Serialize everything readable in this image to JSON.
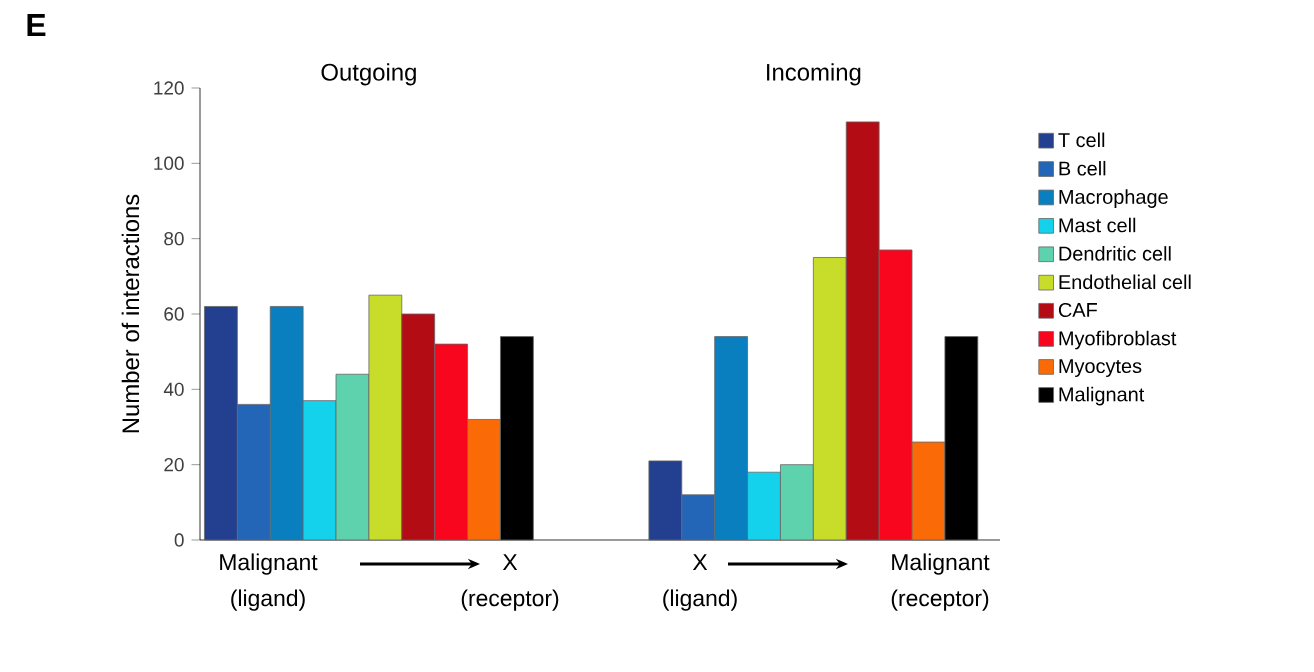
{
  "chart_data": {
    "type": "bar",
    "ylabel": "Number of interactions",
    "categories": [
      "Outgoing",
      "Incoming"
    ],
    "series": [
      {
        "name": "T cell",
        "color": "#233f8f",
        "values": [
          62,
          21
        ]
      },
      {
        "name": "B cell",
        "color": "#2366b8",
        "values": [
          36,
          12
        ]
      },
      {
        "name": "Macrophage",
        "color": "#0a7fc0",
        "values": [
          62,
          54
        ]
      },
      {
        "name": "Mast cell",
        "color": "#14d2ec",
        "values": [
          37,
          18
        ]
      },
      {
        "name": "Dendritic cell",
        "color": "#5ed2ac",
        "values": [
          44,
          20
        ]
      },
      {
        "name": "Endothelial cell",
        "color": "#c8dc2a",
        "values": [
          65,
          75
        ]
      },
      {
        "name": "CAF",
        "color": "#b30c14",
        "values": [
          60,
          111
        ]
      },
      {
        "name": "Myofibroblast",
        "color": "#f8061e",
        "values": [
          52,
          77
        ]
      },
      {
        "name": "Myocytes",
        "color": "#fa6a06",
        "values": [
          32,
          26
        ]
      },
      {
        "name": "Malignant",
        "color": "#000000",
        "values": [
          54,
          54
        ]
      }
    ],
    "ylim": [
      0,
      120
    ],
    "yticks": [
      0,
      20,
      40,
      60,
      80,
      100,
      120
    ],
    "legend": "right",
    "annotations": [
      "E",
      "Malignant",
      "(ligand)",
      "X",
      "(receptor)",
      "X",
      "(ligand)",
      "Malignant",
      "(receptor)"
    ]
  }
}
